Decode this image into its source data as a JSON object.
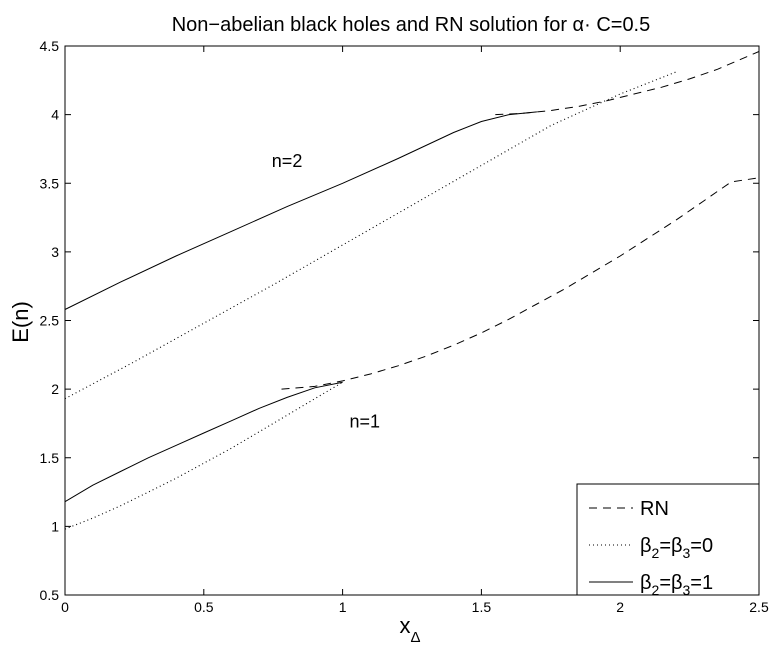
{
  "chart_data": {
    "type": "line",
    "title": "Non−abelian black holes and RN solution for α· C=0.5",
    "xlabel": "x",
    "xlabel_sub": "Δ",
    "ylabel": "E(n)",
    "xlim": [
      0,
      2.5
    ],
    "ylim": [
      0.5,
      4.5
    ],
    "xticks": [
      "0",
      "0.5",
      "1",
      "1.5",
      "2",
      "2.5"
    ],
    "yticks": [
      "0.5",
      "1",
      "1.5",
      "2",
      "2.5",
      "3",
      "3.5",
      "4",
      "4.5"
    ],
    "grid": false,
    "legend_position": "bottom-right",
    "legend": [
      {
        "base": "RN",
        "style": "dashed"
      },
      {
        "base": "β",
        "sub1": "2",
        "mid": "=β",
        "sub2": "3",
        "tail": "=0",
        "style": "dotted"
      },
      {
        "base": "β",
        "sub1": "2",
        "mid": "=β",
        "sub2": "3",
        "tail": "=1",
        "style": "solid"
      }
    ],
    "annotations": [
      {
        "text": "n=2",
        "x": 0.8,
        "y": 3.62
      },
      {
        "text": "n=1",
        "x": 1.08,
        "y": 1.72
      }
    ],
    "series": [
      {
        "key": "rn_n1",
        "style": "dashed",
        "x": [
          0.78,
          0.9,
          1.0,
          1.1,
          1.2,
          1.3,
          1.4,
          1.5,
          1.6,
          1.7,
          1.8,
          1.9,
          2.0,
          2.1,
          2.2,
          2.3,
          2.4,
          2.5
        ],
        "y": [
          2.0,
          2.02,
          2.06,
          2.11,
          2.17,
          2.24,
          2.32,
          2.41,
          2.51,
          2.62,
          2.73,
          2.85,
          2.97,
          3.1,
          3.23,
          3.37,
          3.51,
          3.54
        ]
      },
      {
        "key": "rn_n2",
        "style": "dashed",
        "x": [
          1.55,
          1.65,
          1.75,
          1.85,
          1.95,
          2.05,
          2.15,
          2.25,
          2.35,
          2.5
        ],
        "y": [
          4.0,
          4.01,
          4.03,
          4.06,
          4.1,
          4.15,
          4.2,
          4.26,
          4.33,
          4.46
        ]
      },
      {
        "key": "b0_n1",
        "style": "dotted",
        "x": [
          0,
          0.1,
          0.2,
          0.3,
          0.4,
          0.5,
          0.6,
          0.7,
          0.8,
          0.9,
          1.0
        ],
        "y": [
          0.98,
          1.06,
          1.15,
          1.25,
          1.35,
          1.46,
          1.57,
          1.69,
          1.81,
          1.93,
          2.05
        ]
      },
      {
        "key": "b0_n2",
        "style": "dotted",
        "x": [
          0,
          0.25,
          0.5,
          0.75,
          1.0,
          1.25,
          1.5,
          1.75,
          2.0,
          2.2
        ],
        "y": [
          1.93,
          2.2,
          2.48,
          2.76,
          3.05,
          3.34,
          3.63,
          3.92,
          4.15,
          4.31
        ]
      },
      {
        "key": "b1_n1",
        "style": "solid",
        "x": [
          0,
          0.1,
          0.2,
          0.3,
          0.4,
          0.5,
          0.6,
          0.7,
          0.8,
          0.9,
          1.0
        ],
        "y": [
          1.18,
          1.3,
          1.4,
          1.5,
          1.59,
          1.68,
          1.77,
          1.86,
          1.94,
          2.01,
          2.05
        ]
      },
      {
        "key": "b1_n2",
        "style": "solid",
        "x": [
          0,
          0.2,
          0.4,
          0.6,
          0.8,
          1.0,
          1.2,
          1.4,
          1.5,
          1.6,
          1.7
        ],
        "y": [
          2.58,
          2.78,
          2.97,
          3.15,
          3.33,
          3.5,
          3.68,
          3.87,
          3.95,
          4.0,
          4.02
        ]
      }
    ]
  }
}
